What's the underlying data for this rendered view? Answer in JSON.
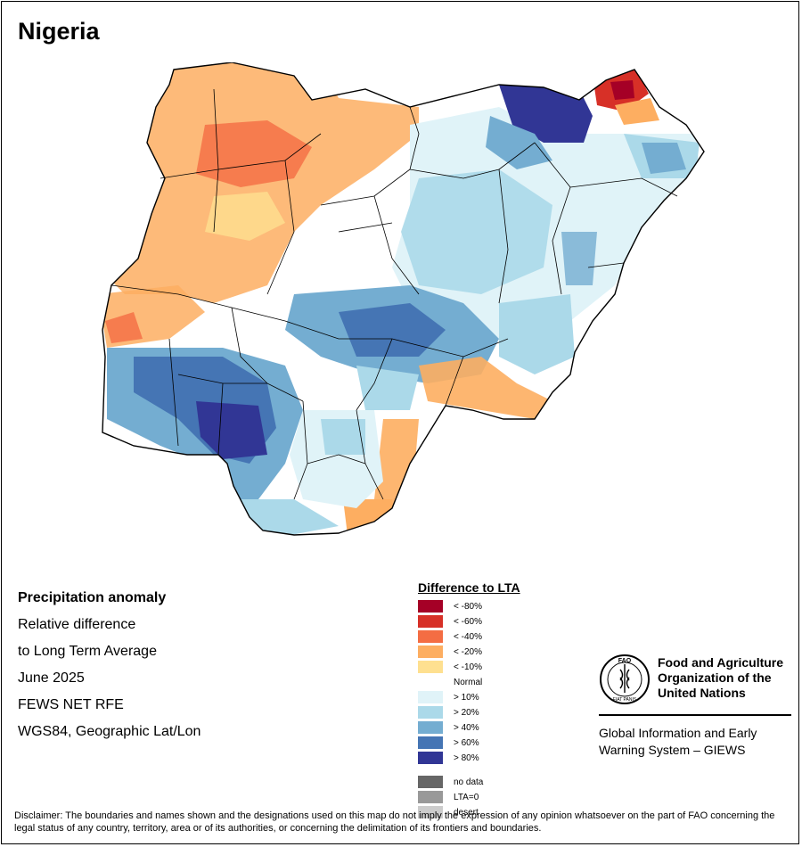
{
  "title": "Nigeria",
  "info": {
    "heading": "Precipitation anomaly",
    "line1": "Relative difference",
    "line2": "to Long Term Average",
    "period": "June 2025",
    "source": "FEWS NET RFE",
    "projection": "WGS84, Geographic Lat/Lon"
  },
  "legend": {
    "title": "Difference to LTA",
    "items": [
      {
        "label": "< -80%",
        "color": "#a50026"
      },
      {
        "label": "< -60%",
        "color": "#d73027"
      },
      {
        "label": "< -40%",
        "color": "#f46d43"
      },
      {
        "label": "< -20%",
        "color": "#fdae61"
      },
      {
        "label": "< -10%",
        "color": "#fee090"
      },
      {
        "label": "Normal",
        "color": "#ffffff"
      },
      {
        "label": "> 10%",
        "color": "#e0f3f8"
      },
      {
        "label": "> 20%",
        "color": "#abd9e9"
      },
      {
        "label": "> 40%",
        "color": "#74add1"
      },
      {
        "label": "> 60%",
        "color": "#4575b4"
      },
      {
        "label": "> 80%",
        "color": "#313695"
      }
    ],
    "extra": [
      {
        "label": "no data",
        "color": "#666666"
      },
      {
        "label": "LTA=0",
        "color": "#999999"
      },
      {
        "label": "desert",
        "color": "#cccccc"
      }
    ]
  },
  "fao": {
    "name_line1": "Food and Agriculture",
    "name_line2": "Organization of the",
    "name_line3": "United Nations",
    "logo_text": "FAO",
    "logo_motto": "FIAT PANIS",
    "giews_line1": "Global Information and Early",
    "giews_line2": "Warning System – GIEWS"
  },
  "disclaimer": "Disclaimer: The boundaries and names shown and the designations used on this map do not imply the expression of any opinion whatsoever on the part of FAO concerning the legal status of any country, territory, area or of its authorities, or concerning the delimitation of its frontiers and boundaries."
}
